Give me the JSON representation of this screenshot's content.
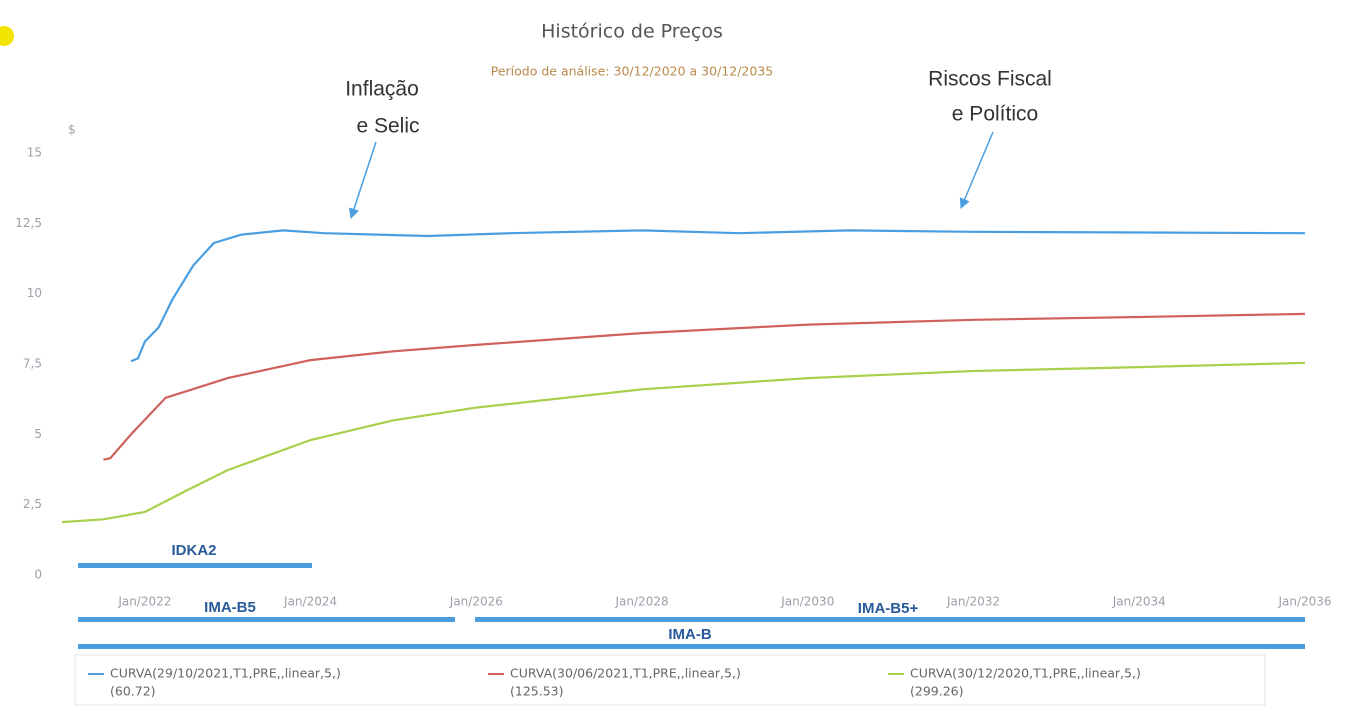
{
  "chart_data": {
    "type": "line",
    "title": "Histórico de Preços",
    "subtitle": "Período de análise: 30/12/2020 a 30/12/2035",
    "y_label": "$",
    "annotations": [
      {
        "lines": [
          "Inflação",
          "e Selic"
        ]
      },
      {
        "lines": [
          "Riscos Fiscal",
          "e Político"
        ]
      }
    ],
    "index_bands": [
      "IDKA2",
      "IMA-B5",
      "IMA-B5+",
      "IMA-B"
    ],
    "xlim": [
      "2021-01",
      "2036-01"
    ],
    "xticks": [
      {
        "value": "2022-01",
        "label": "Jan/2022"
      },
      {
        "value": "2024-01",
        "label": "Jan/2024"
      },
      {
        "value": "2026-01",
        "label": "Jan/2026"
      },
      {
        "value": "2028-01",
        "label": "Jan/2028"
      },
      {
        "value": "2030-01",
        "label": "Jan/2030"
      },
      {
        "value": "2032-01",
        "label": "Jan/2032"
      },
      {
        "value": "2034-01",
        "label": "Jan/2034"
      },
      {
        "value": "2036-01",
        "label": "Jan/2036"
      }
    ],
    "ylim": [
      0,
      15
    ],
    "yticks": [
      0,
      {
        "value": 2.5,
        "label": "2,5"
      },
      5,
      {
        "value": 7.5,
        "label": "7,5"
      },
      10,
      {
        "value": 12.5,
        "label": "12,5"
      },
      15
    ],
    "grid": false,
    "series": [
      {
        "name": "CURVA(29/10/2021,T1,PRE,,linear,5,)",
        "note": "(60.72)",
        "color": "#4a9ee0",
        "x": [
          "2021-11",
          "2021-12",
          "2022-01",
          "2022-03",
          "2022-05",
          "2022-08",
          "2022-11",
          "2023-03",
          "2023-09",
          "2024-03",
          "2025-06",
          "2026-06",
          "2028-01",
          "2029-03",
          "2030-07",
          "2032-01",
          "2036-01"
        ],
        "values": [
          7.6,
          7.7,
          8.3,
          8.8,
          9.8,
          11.0,
          11.8,
          12.1,
          12.25,
          12.15,
          12.05,
          12.15,
          12.25,
          12.15,
          12.25,
          12.2,
          12.15
        ]
      },
      {
        "name": "CURVA(30/06/2021,T1,PRE,,linear,5,)",
        "note": "(125.53)",
        "color": "#d0605a",
        "x": [
          "2021-07",
          "2021-08",
          "2021-11",
          "2022-04",
          "2023-01",
          "2024-01",
          "2025-01",
          "2026-01",
          "2028-01",
          "2030-01",
          "2032-01",
          "2034-01",
          "2036-01"
        ],
        "values": [
          4.1,
          4.15,
          5.0,
          6.3,
          7.0,
          7.64,
          7.95,
          8.18,
          8.6,
          8.9,
          9.07,
          9.17,
          9.28
        ]
      },
      {
        "name": "CURVA(30/12/2020,T1,PRE,,linear,5,)",
        "note": "(299.26)",
        "color": "#a8d04a",
        "x": [
          "2021-01",
          "2021-07",
          "2022-01",
          "2022-07",
          "2023-01",
          "2024-01",
          "2025-01",
          "2026-01",
          "2028-01",
          "2030-01",
          "2032-01",
          "2034-01",
          "2036-01"
        ],
        "values": [
          1.88,
          1.98,
          2.24,
          3.0,
          3.73,
          4.8,
          5.5,
          5.95,
          6.6,
          7.0,
          7.25,
          7.39,
          7.54
        ]
      }
    ]
  }
}
